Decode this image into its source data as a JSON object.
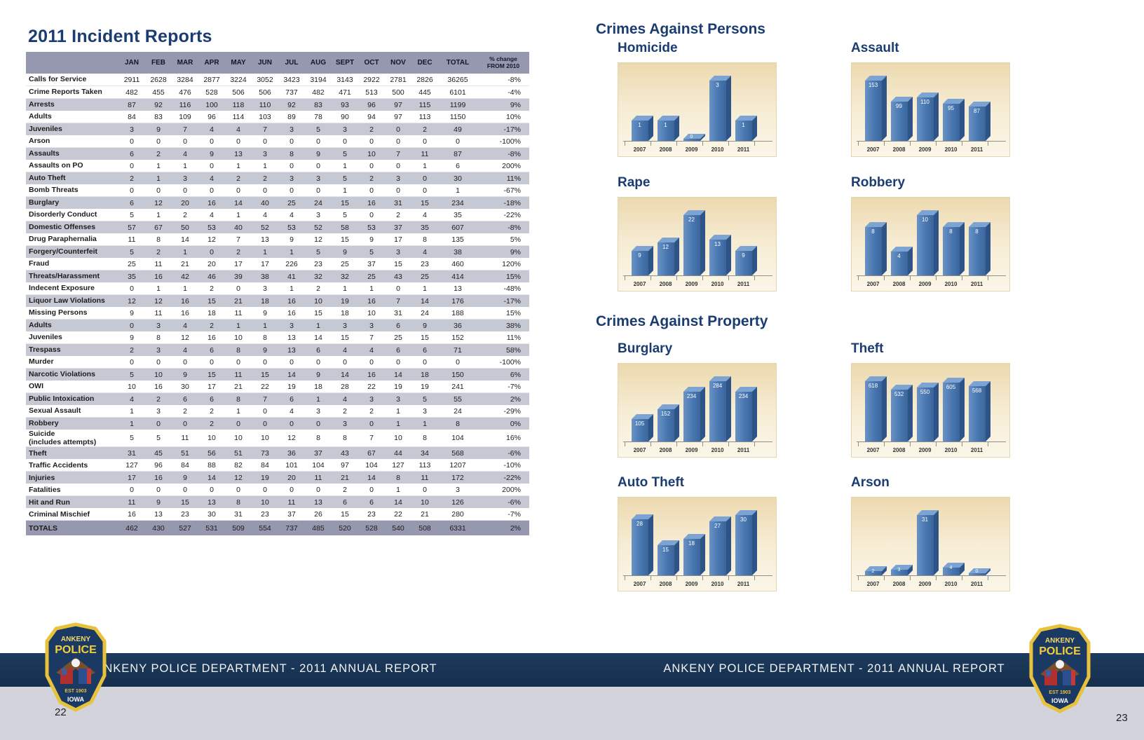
{
  "left_page": {
    "title": "2011 Incident Reports",
    "page_number": "22",
    "table": {
      "columns": {
        "months": [
          "JAN",
          "FEB",
          "MAR",
          "APR",
          "MAY",
          "JUN",
          "JUL",
          "AUG",
          "SEPT",
          "OCT",
          "NOV",
          "DEC"
        ],
        "total_label": "TOTAL",
        "change_label": "% change\nFROM 2010"
      },
      "rows": [
        {
          "label": "Calls for Service",
          "values": [
            2911,
            2628,
            3284,
            2877,
            3224,
            3052,
            3423,
            3194,
            3143,
            2922,
            2781,
            2826
          ],
          "total": "36265",
          "change": "-8%"
        },
        {
          "label": "Crime Reports Taken",
          "values": [
            482,
            455,
            476,
            528,
            506,
            506,
            737,
            482,
            471,
            513,
            500,
            445
          ],
          "total": "6101",
          "change": "-4%"
        },
        {
          "label": "Arrests",
          "values": [
            87,
            92,
            116,
            100,
            118,
            110,
            92,
            83,
            93,
            96,
            97,
            115
          ],
          "total": "1199",
          "change": "9%"
        },
        {
          "label": "Adults",
          "values": [
            84,
            83,
            109,
            96,
            114,
            103,
            89,
            78,
            90,
            94,
            97,
            113
          ],
          "total": "1150",
          "change": "10%"
        },
        {
          "label": "Juveniles",
          "values": [
            3,
            9,
            7,
            4,
            4,
            7,
            3,
            5,
            3,
            2,
            0,
            2
          ],
          "total": "49",
          "change": "-17%"
        },
        {
          "label": "Arson",
          "values": [
            0,
            0,
            0,
            0,
            0,
            0,
            0,
            0,
            0,
            0,
            0,
            0
          ],
          "total": "0",
          "change": "-100%"
        },
        {
          "label": "Assaults",
          "values": [
            6,
            2,
            4,
            9,
            13,
            3,
            8,
            9,
            5,
            10,
            7,
            11
          ],
          "total": "87",
          "change": "-8%"
        },
        {
          "label": "Assaults on PO",
          "values": [
            0,
            1,
            1,
            0,
            1,
            1,
            0,
            0,
            1,
            0,
            0,
            1
          ],
          "total": "6",
          "change": "200%"
        },
        {
          "label": "Auto Theft",
          "values": [
            2,
            1,
            3,
            4,
            2,
            2,
            3,
            3,
            5,
            2,
            3,
            0
          ],
          "total": "30",
          "change": "11%"
        },
        {
          "label": "Bomb Threats",
          "values": [
            0,
            0,
            0,
            0,
            0,
            0,
            0,
            0,
            1,
            0,
            0,
            0
          ],
          "total": "1",
          "change": "-67%"
        },
        {
          "label": "Burglary",
          "values": [
            6,
            12,
            20,
            16,
            14,
            40,
            25,
            24,
            15,
            16,
            31,
            15
          ],
          "total": "234",
          "change": "-18%"
        },
        {
          "label": "Disorderly Conduct",
          "values": [
            5,
            1,
            2,
            4,
            1,
            4,
            4,
            3,
            5,
            0,
            2,
            4
          ],
          "total": "35",
          "change": "-22%"
        },
        {
          "label": "Domestic Offenses",
          "values": [
            57,
            67,
            50,
            53,
            40,
            52,
            53,
            52,
            58,
            53,
            37,
            35
          ],
          "total": "607",
          "change": "-8%"
        },
        {
          "label": "Drug Paraphernalia",
          "values": [
            11,
            8,
            14,
            12,
            7,
            13,
            9,
            12,
            15,
            9,
            17,
            8
          ],
          "total": "135",
          "change": "5%"
        },
        {
          "label": "Forgery/Counterfeit",
          "values": [
            5,
            2,
            1,
            0,
            2,
            1,
            1,
            5,
            9,
            5,
            3,
            4
          ],
          "total": "38",
          "change": "9%"
        },
        {
          "label": "Fraud",
          "values": [
            25,
            11,
            21,
            20,
            17,
            17,
            226,
            23,
            25,
            37,
            15,
            23
          ],
          "total": "460",
          "change": "120%"
        },
        {
          "label": "Threats/Harassment",
          "values": [
            35,
            16,
            42,
            46,
            39,
            38,
            41,
            32,
            32,
            25,
            43,
            25
          ],
          "total": "414",
          "change": "15%"
        },
        {
          "label": "Indecent Exposure",
          "values": [
            0,
            1,
            1,
            2,
            0,
            3,
            1,
            2,
            1,
            1,
            0,
            1
          ],
          "total": "13",
          "change": "-48%"
        },
        {
          "label": "Liquor Law Violations",
          "values": [
            12,
            12,
            16,
            15,
            21,
            18,
            16,
            10,
            19,
            16,
            7,
            14
          ],
          "total": "176",
          "change": "-17%"
        },
        {
          "label": "Missing Persons",
          "values": [
            9,
            11,
            16,
            18,
            11,
            9,
            16,
            15,
            18,
            10,
            31,
            24
          ],
          "total": "188",
          "change": "15%"
        },
        {
          "label": "Adults",
          "values": [
            0,
            3,
            4,
            2,
            1,
            1,
            3,
            1,
            3,
            3,
            6,
            9
          ],
          "total": "36",
          "change": "38%"
        },
        {
          "label": "Juveniles",
          "values": [
            9,
            8,
            12,
            16,
            10,
            8,
            13,
            14,
            15,
            7,
            25,
            15
          ],
          "total": "152",
          "change": "11%"
        },
        {
          "label": "Trespass",
          "values": [
            2,
            3,
            4,
            6,
            8,
            9,
            13,
            6,
            4,
            4,
            6,
            6
          ],
          "total": "71",
          "change": "58%"
        },
        {
          "label": "Murder",
          "values": [
            0,
            0,
            0,
            0,
            0,
            0,
            0,
            0,
            0,
            0,
            0,
            0
          ],
          "total": "0",
          "change": "-100%"
        },
        {
          "label": "Narcotic Violations",
          "values": [
            5,
            10,
            9,
            15,
            11,
            15,
            14,
            9,
            14,
            16,
            14,
            18
          ],
          "total": "150",
          "change": "6%"
        },
        {
          "label": "OWI",
          "values": [
            10,
            16,
            30,
            17,
            21,
            22,
            19,
            18,
            28,
            22,
            19,
            19
          ],
          "total": "241",
          "change": "-7%"
        },
        {
          "label": "Public Intoxication",
          "values": [
            4,
            2,
            6,
            6,
            8,
            7,
            6,
            1,
            4,
            3,
            3,
            5
          ],
          "total": "55",
          "change": "2%"
        },
        {
          "label": "Sexual Assault",
          "values": [
            1,
            3,
            2,
            2,
            1,
            0,
            4,
            3,
            2,
            2,
            1,
            3
          ],
          "total": "24",
          "change": "-29%"
        },
        {
          "label": "Robbery",
          "values": [
            1,
            0,
            0,
            2,
            0,
            0,
            0,
            0,
            3,
            0,
            1,
            1
          ],
          "total": "8",
          "change": "0%"
        },
        {
          "label": "Suicide\n(includes attempts)",
          "values": [
            5,
            5,
            11,
            10,
            10,
            10,
            12,
            8,
            8,
            7,
            10,
            8
          ],
          "total": "104",
          "change": "16%"
        },
        {
          "label": "Theft",
          "values": [
            31,
            45,
            51,
            56,
            51,
            73,
            36,
            37,
            43,
            67,
            44,
            34
          ],
          "total": "568",
          "change": "-6%"
        },
        {
          "label": "Traffic Accidents",
          "values": [
            127,
            96,
            84,
            88,
            82,
            84,
            101,
            104,
            97,
            104,
            127,
            113
          ],
          "total": "1207",
          "change": "-10%"
        },
        {
          "label": "Injuries",
          "values": [
            17,
            16,
            9,
            14,
            12,
            19,
            20,
            11,
            21,
            14,
            8,
            11
          ],
          "total": "172",
          "change": "-22%"
        },
        {
          "label": "Fatalities",
          "values": [
            0,
            0,
            0,
            0,
            0,
            0,
            0,
            0,
            2,
            0,
            1,
            0
          ],
          "total": "3",
          "change": "200%"
        },
        {
          "label": "Hit and Run",
          "values": [
            11,
            9,
            15,
            13,
            8,
            10,
            11,
            13,
            6,
            6,
            14,
            10
          ],
          "total": "126",
          "change": "-6%"
        },
        {
          "label": "Criminal Mischief",
          "values": [
            16,
            13,
            23,
            30,
            31,
            23,
            37,
            26,
            15,
            23,
            22,
            21
          ],
          "total": "280",
          "change": "-7%"
        }
      ],
      "totals": {
        "label": "TOTALS",
        "values": [
          462,
          430,
          527,
          531,
          509,
          554,
          737,
          485,
          520,
          528,
          540,
          508
        ],
        "total": "6331",
        "change": "2%"
      }
    }
  },
  "right_page": {
    "page_number": "23",
    "sections": [
      {
        "heading": "Crimes Against Persons"
      },
      {
        "heading": "Crimes Against Property"
      }
    ]
  },
  "footer": {
    "banner_text": "ANKENY POLICE DEPARTMENT - 2011 ANNUAL REPORT",
    "badge": {
      "line1": "ANKENY",
      "line2": "POLICE",
      "est": "EST 1903",
      "state": "IOWA"
    }
  },
  "chart_data": [
    {
      "type": "bar",
      "title": "Homicide",
      "categories": [
        "2007",
        "2008",
        "2009",
        "2010",
        "2011"
      ],
      "values": [
        1,
        1,
        0,
        3,
        1
      ],
      "ylim": [
        0,
        3
      ],
      "grid": false,
      "legend": "none"
    },
    {
      "type": "bar",
      "title": "Assault",
      "categories": [
        "2007",
        "2008",
        "2009",
        "2010",
        "2011"
      ],
      "values": [
        153,
        99,
        110,
        95,
        87
      ],
      "ylim": [
        0,
        153
      ],
      "grid": false,
      "legend": "none"
    },
    {
      "type": "bar",
      "title": "Rape",
      "categories": [
        "2007",
        "2008",
        "2009",
        "2010",
        "2011"
      ],
      "values": [
        9,
        12,
        22,
        13,
        9
      ],
      "ylim": [
        0,
        22
      ],
      "grid": false,
      "legend": "none"
    },
    {
      "type": "bar",
      "title": "Robbery",
      "categories": [
        "2007",
        "2008",
        "2009",
        "2010",
        "2011"
      ],
      "values": [
        8,
        4,
        10,
        8,
        8
      ],
      "ylim": [
        0,
        10
      ],
      "grid": false,
      "legend": "none"
    },
    {
      "type": "bar",
      "title": "Burglary",
      "categories": [
        "2007",
        "2008",
        "2009",
        "2010",
        "2011"
      ],
      "values": [
        105,
        152,
        234,
        284,
        234
      ],
      "ylim": [
        0,
        284
      ],
      "grid": false,
      "legend": "none"
    },
    {
      "type": "bar",
      "title": "Theft",
      "categories": [
        "2007",
        "2008",
        "2009",
        "2010",
        "2011"
      ],
      "values": [
        618,
        532,
        550,
        605,
        568
      ],
      "ylim": [
        0,
        618
      ],
      "grid": false,
      "legend": "none"
    },
    {
      "type": "bar",
      "title": "Auto Theft",
      "categories": [
        "2007",
        "2008",
        "2009",
        "2010",
        "2011"
      ],
      "values": [
        28,
        15,
        18,
        27,
        30
      ],
      "ylim": [
        0,
        30
      ],
      "grid": false,
      "legend": "none"
    },
    {
      "type": "bar",
      "title": "Arson",
      "categories": [
        "2007",
        "2008",
        "2009",
        "2010",
        "2011"
      ],
      "values": [
        2,
        3,
        31,
        4,
        0
      ],
      "ylim": [
        0,
        31
      ],
      "grid": false,
      "legend": "none"
    }
  ]
}
